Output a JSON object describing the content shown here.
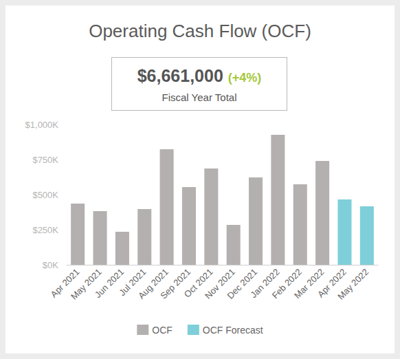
{
  "chart_data": {
    "type": "bar",
    "title": "Operating Cash Flow (OCF)",
    "kpi_value": "$6,661,000",
    "kpi_change": "(+4%)",
    "kpi_label": "Fiscal Year Total",
    "categories": [
      "Apr 2021",
      "May 2021",
      "Jun 2021",
      "Jul 2021",
      "Aug 2021",
      "Sep 2021",
      "Oct 2021",
      "Nov 2021",
      "Dec 2021",
      "Jan 2022",
      "Feb 2022",
      "Mar 2022",
      "Apr 2022",
      "May 2022"
    ],
    "series": [
      {
        "name": "OCF",
        "color": "#b5b0b0",
        "values": [
          436,
          382,
          235,
          397,
          824,
          554,
          686,
          284,
          623,
          926,
          574,
          740,
          null,
          null
        ]
      },
      {
        "name": "OCF Forecast",
        "color": "#7ecfd9",
        "values": [
          null,
          null,
          null,
          null,
          null,
          null,
          null,
          null,
          null,
          null,
          null,
          null,
          466,
          417
        ]
      }
    ],
    "ylim": [
      0,
      1000
    ],
    "yticks": [
      {
        "value": 0,
        "label": "$0K"
      },
      {
        "value": 250,
        "label": "$250K"
      },
      {
        "value": 500,
        "label": "$500K"
      },
      {
        "value": 750,
        "label": "$750K"
      },
      {
        "value": 1000,
        "label": "$1,000K"
      }
    ],
    "grid": false,
    "legend": "bottom"
  }
}
